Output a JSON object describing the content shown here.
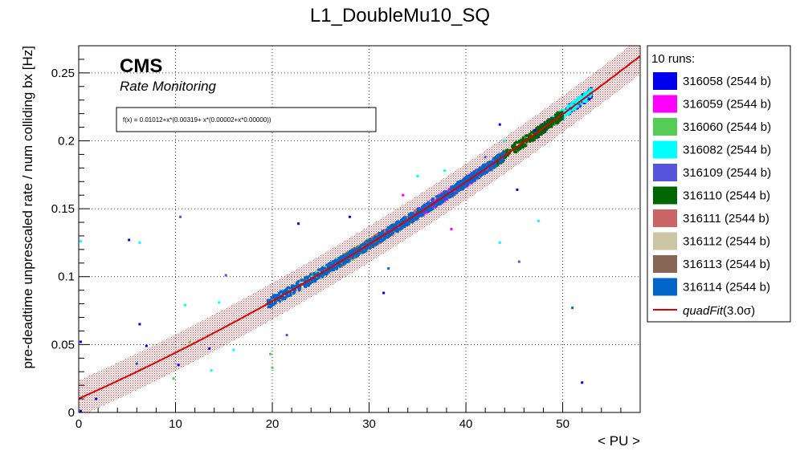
{
  "title": "L1_DoubleMu10_SQ",
  "watermark": {
    "experiment": "CMS",
    "subtitle": "Rate Monitoring"
  },
  "fit_box": {
    "formula": "f(x) = 0.01012+x*(0.00319+ x*(0.00002+x*0.00000))"
  },
  "legend": {
    "header": "10 runs:",
    "fit_label": "quadFit",
    "fit_sigma": "(3.0σ)"
  },
  "colors": {
    "fit_line": "#dd0000",
    "band": "#cc3333"
  },
  "chart_data": {
    "type": "scatter",
    "title": "L1_DoubleMu10_SQ",
    "xlabel": "< PU >",
    "ylabel": "pre-deadtime unprescaled rate / num colliding bx [Hz]",
    "xlim": [
      0,
      58
    ],
    "ylim": [
      0,
      0.27
    ],
    "x_ticks": [
      0,
      10,
      20,
      30,
      40,
      50
    ],
    "x_tick_labels": [
      "0",
      "10",
      "20",
      "30",
      "40",
      "50"
    ],
    "y_ticks": [
      0,
      0.05,
      0.1,
      0.15,
      0.2,
      0.25
    ],
    "y_tick_labels": [
      "0",
      "0.05",
      "0.1",
      "0.15",
      "0.2",
      "0.25"
    ],
    "grid": true,
    "legend_position": "right-outside",
    "fit": {
      "name": "quadFit",
      "coefficients": [
        0.01012,
        0.00319,
        2e-05,
        0.0
      ],
      "band_sigma": 3.0,
      "band_halfwidth": 0.0135,
      "x_range": [
        0,
        58
      ]
    },
    "series": [
      {
        "name": "316058 (2544 b)",
        "color": "#0000ee",
        "x_range": [
          47,
          53
        ],
        "outliers": [
          [
            0.2,
            0.001
          ],
          [
            0.2,
            0.052
          ],
          [
            1.8,
            0.01
          ],
          [
            5.2,
            0.127
          ],
          [
            6.3,
            0.065
          ],
          [
            7.0,
            0.049
          ],
          [
            10.3,
            0.035
          ],
          [
            13.5,
            0.047
          ],
          [
            22.7,
            0.139
          ],
          [
            28.0,
            0.144
          ],
          [
            31.5,
            0.088
          ],
          [
            43.5,
            0.212
          ],
          [
            45.3,
            0.164
          ],
          [
            52.0,
            0.022
          ]
        ]
      },
      {
        "name": "316059 (2544 b)",
        "color": "#ff00ff",
        "x_range": [
          35,
          41
        ],
        "outliers": [
          [
            33.5,
            0.16
          ],
          [
            38.5,
            0.135
          ]
        ]
      },
      {
        "name": "316060 (2544 b)",
        "color": "#55cc55",
        "x_range": [
          24,
          30
        ],
        "outliers": [
          [
            9.8,
            0.025
          ],
          [
            11.5,
            0.052
          ],
          [
            20.0,
            0.033
          ],
          [
            19.8,
            0.043
          ]
        ]
      },
      {
        "name": "316082 (2544 b)",
        "color": "#00ffff",
        "x_range": [
          49,
          53
        ],
        "outliers": [
          [
            0.2,
            0.126
          ],
          [
            6.3,
            0.125
          ],
          [
            11.0,
            0.079
          ],
          [
            13.7,
            0.031
          ],
          [
            14.5,
            0.081
          ],
          [
            16.0,
            0.046
          ],
          [
            35.0,
            0.174
          ],
          [
            37.8,
            0.178
          ],
          [
            43.5,
            0.125
          ],
          [
            44.0,
            0.2
          ],
          [
            47.5,
            0.141
          ]
        ]
      },
      {
        "name": "316109 (2544 b)",
        "color": "#5555dd",
        "x_range": [
          38,
          44
        ],
        "outliers": [
          [
            10.5,
            0.144
          ],
          [
            15.2,
            0.101
          ],
          [
            21.5,
            0.057
          ],
          [
            42.0,
            0.188
          ],
          [
            45.5,
            0.111
          ]
        ]
      },
      {
        "name": "316110 (2544 b)",
        "color": "#006600",
        "x_range": [
          43,
          50
        ],
        "outliers": []
      },
      {
        "name": "316111 (2544 b)",
        "color": "#cc6666",
        "x_range": [
          30,
          35
        ],
        "outliers": []
      },
      {
        "name": "316112 (2544 b)",
        "color": "#ccc6a6",
        "x_range": [
          22,
          27
        ],
        "outliers": []
      },
      {
        "name": "316113 (2544 b)",
        "color": "#886655",
        "x_range": [
          27,
          31
        ],
        "outliers": []
      },
      {
        "name": "316114 (2544 b)",
        "color": "#0066cc",
        "x_range": [
          19.5,
          44
        ],
        "outliers": [
          [
            6.0,
            0.036
          ],
          [
            19.5,
            0.08
          ],
          [
            32.0,
            0.106
          ],
          [
            51.0,
            0.077
          ]
        ]
      }
    ]
  }
}
